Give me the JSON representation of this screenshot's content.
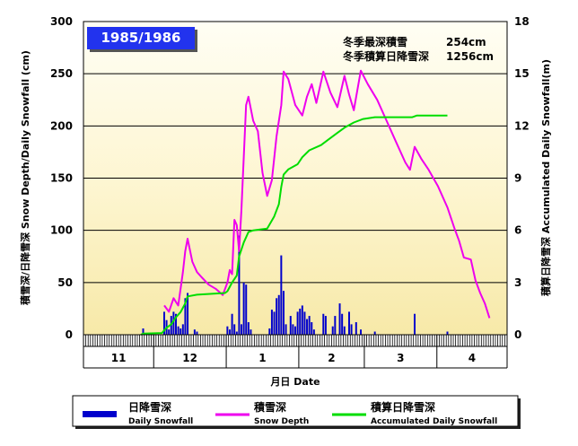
{
  "chart_data": {
    "type": "bar+line",
    "season_label": "1985/1986",
    "annotations": [
      {
        "label": "冬季最深積雪",
        "value": "254cm"
      },
      {
        "label": "冬季積算日降雪深",
        "value": "1256cm"
      }
    ],
    "y_left": {
      "label": "積雪深/日降雪深 Snow Depth/Daily Snowfall (cm)",
      "min": 0,
      "max": 300,
      "ticks": [
        0,
        50,
        100,
        150,
        200,
        250,
        300
      ]
    },
    "y_right": {
      "label": "積算日降雪深 Accumulated Daily Snowfall(m)",
      "min": 0,
      "max": 18,
      "ticks": [
        0,
        3,
        6,
        9,
        12,
        15,
        18
      ]
    },
    "x_axis": {
      "label": "月日 Date",
      "months": [
        "11",
        "12",
        "1",
        "2",
        "3",
        "4"
      ],
      "month_days": [
        30,
        31,
        31,
        28,
        31,
        30
      ],
      "start": "1985-11-01"
    },
    "grid": true,
    "legend_position": "bottom",
    "legend": [
      {
        "jp": "日降雪深",
        "en": "Daily Snowfall",
        "color": "#0000cc"
      },
      {
        "jp": "積雪深",
        "en": "Snow Depth",
        "color": "#ee00ee"
      },
      {
        "jp": "積算日降雪深",
        "en": "Accumulated Daily Snowfall",
        "color": "#00dd00"
      }
    ],
    "series": [
      {
        "name": "日降雪深 Daily Snowfall",
        "axis": "left",
        "type": "bar",
        "color": "#0000cc",
        "points": [
          [
            "1985-11-26",
            6
          ],
          [
            "1985-12-05",
            22
          ],
          [
            "1985-12-06",
            14
          ],
          [
            "1985-12-07",
            5
          ],
          [
            "1985-12-08",
            18
          ],
          [
            "1985-12-09",
            22
          ],
          [
            "1985-12-10",
            20
          ],
          [
            "1985-12-11",
            8
          ],
          [
            "1985-12-12",
            6
          ],
          [
            "1985-12-13",
            10
          ],
          [
            "1985-12-14",
            35
          ],
          [
            "1985-12-15",
            40
          ],
          [
            "1985-12-18",
            5
          ],
          [
            "1985-12-19",
            3
          ],
          [
            "1986-01-01",
            8
          ],
          [
            "1986-01-02",
            5
          ],
          [
            "1986-01-03",
            20
          ],
          [
            "1986-01-04",
            10
          ],
          [
            "1986-01-05",
            3
          ],
          [
            "1986-01-06",
            95
          ],
          [
            "1986-01-07",
            10
          ],
          [
            "1986-01-08",
            50
          ],
          [
            "1986-01-09",
            48
          ],
          [
            "1986-01-10",
            12
          ],
          [
            "1986-01-11",
            5
          ],
          [
            "1986-01-19",
            6
          ],
          [
            "1986-01-20",
            24
          ],
          [
            "1986-01-21",
            22
          ],
          [
            "1986-01-22",
            35
          ],
          [
            "1986-01-23",
            38
          ],
          [
            "1986-01-24",
            76
          ],
          [
            "1986-01-25",
            42
          ],
          [
            "1986-01-26",
            10
          ],
          [
            "1986-01-28",
            18
          ],
          [
            "1986-01-29",
            10
          ],
          [
            "1986-01-30",
            8
          ],
          [
            "1986-01-31",
            22
          ],
          [
            "1986-02-01",
            25
          ],
          [
            "1986-02-02",
            28
          ],
          [
            "1986-02-03",
            22
          ],
          [
            "1986-02-04",
            15
          ],
          [
            "1986-02-05",
            18
          ],
          [
            "1986-02-06",
            12
          ],
          [
            "1986-02-07",
            5
          ],
          [
            "1986-02-11",
            20
          ],
          [
            "1986-02-12",
            18
          ],
          [
            "1986-02-15",
            8
          ],
          [
            "1986-02-16",
            18
          ],
          [
            "1986-02-18",
            30
          ],
          [
            "1986-02-19",
            20
          ],
          [
            "1986-02-20",
            8
          ],
          [
            "1986-02-22",
            22
          ],
          [
            "1986-02-23",
            10
          ],
          [
            "1986-02-25",
            12
          ],
          [
            "1986-02-27",
            5
          ],
          [
            "1986-03-05",
            3
          ],
          [
            "1986-03-22",
            20
          ],
          [
            "1986-04-05",
            3
          ]
        ]
      },
      {
        "name": "積雪深 Snow Depth",
        "axis": "left",
        "type": "line",
        "color": "#ee00ee",
        "points": [
          [
            "1985-12-05",
            28
          ],
          [
            "1985-12-07",
            22
          ],
          [
            "1985-12-09",
            35
          ],
          [
            "1985-12-11",
            28
          ],
          [
            "1985-12-13",
            60
          ],
          [
            "1985-12-14",
            80
          ],
          [
            "1985-12-15",
            92
          ],
          [
            "1985-12-17",
            70
          ],
          [
            "1985-12-19",
            60
          ],
          [
            "1985-12-21",
            55
          ],
          [
            "1985-12-24",
            48
          ],
          [
            "1985-12-27",
            44
          ],
          [
            "1985-12-30",
            38
          ],
          [
            "1986-01-01",
            50
          ],
          [
            "1986-01-02",
            62
          ],
          [
            "1986-01-03",
            58
          ],
          [
            "1986-01-04",
            110
          ],
          [
            "1986-01-05",
            105
          ],
          [
            "1986-01-06",
            80
          ],
          [
            "1986-01-07",
            120
          ],
          [
            "1986-01-08",
            170
          ],
          [
            "1986-01-09",
            220
          ],
          [
            "1986-01-10",
            228
          ],
          [
            "1986-01-12",
            205
          ],
          [
            "1986-01-14",
            195
          ],
          [
            "1986-01-16",
            155
          ],
          [
            "1986-01-18",
            133
          ],
          [
            "1986-01-20",
            148
          ],
          [
            "1986-01-22",
            190
          ],
          [
            "1986-01-24",
            220
          ],
          [
            "1986-01-25",
            252
          ],
          [
            "1986-01-27",
            245
          ],
          [
            "1986-01-30",
            220
          ],
          [
            "1986-02-02",
            210
          ],
          [
            "1986-02-04",
            228
          ],
          [
            "1986-02-06",
            240
          ],
          [
            "1986-02-08",
            222
          ],
          [
            "1986-02-11",
            252
          ],
          [
            "1986-02-14",
            232
          ],
          [
            "1986-02-17",
            218
          ],
          [
            "1986-02-20",
            248
          ],
          [
            "1986-02-22",
            230
          ],
          [
            "1986-02-24",
            215
          ],
          [
            "1986-02-27",
            253
          ],
          [
            "1986-03-02",
            240
          ],
          [
            "1986-03-06",
            225
          ],
          [
            "1986-03-10",
            205
          ],
          [
            "1986-03-14",
            185
          ],
          [
            "1986-03-18",
            165
          ],
          [
            "1986-03-20",
            158
          ],
          [
            "1986-03-22",
            180
          ],
          [
            "1986-03-25",
            168
          ],
          [
            "1986-03-28",
            158
          ],
          [
            "1986-04-01",
            142
          ],
          [
            "1986-04-05",
            122
          ],
          [
            "1986-04-08",
            102
          ],
          [
            "1986-04-10",
            90
          ],
          [
            "1986-04-12",
            74
          ],
          [
            "1986-04-15",
            72
          ],
          [
            "1986-04-17",
            52
          ],
          [
            "1986-04-19",
            40
          ],
          [
            "1986-04-21",
            30
          ],
          [
            "1986-04-23",
            16
          ]
        ]
      },
      {
        "name": "積算日降雪深 Accumulated Daily Snowfall",
        "axis": "right",
        "type": "line",
        "color": "#00dd00",
        "points": [
          [
            "1985-11-25",
            0
          ],
          [
            "1985-11-26",
            0.06
          ],
          [
            "1985-12-04",
            0.1
          ],
          [
            "1985-12-06",
            0.4
          ],
          [
            "1985-12-08",
            0.6
          ],
          [
            "1985-12-10",
            1.0
          ],
          [
            "1985-12-12",
            1.3
          ],
          [
            "1985-12-14",
            1.8
          ],
          [
            "1985-12-15",
            2.2
          ],
          [
            "1985-12-19",
            2.3
          ],
          [
            "1985-12-31",
            2.4
          ],
          [
            "1986-01-01",
            2.5
          ],
          [
            "1986-01-03",
            3.0
          ],
          [
            "1986-01-05",
            3.4
          ],
          [
            "1986-01-06",
            4.5
          ],
          [
            "1986-01-08",
            5.3
          ],
          [
            "1986-01-10",
            5.9
          ],
          [
            "1986-01-12",
            6.0
          ],
          [
            "1986-01-18",
            6.1
          ],
          [
            "1986-01-21",
            6.8
          ],
          [
            "1986-01-23",
            7.5
          ],
          [
            "1986-01-24",
            8.5
          ],
          [
            "1986-01-25",
            9.2
          ],
          [
            "1986-01-27",
            9.5
          ],
          [
            "1986-01-31",
            9.8
          ],
          [
            "1986-02-02",
            10.2
          ],
          [
            "1986-02-05",
            10.6
          ],
          [
            "1986-02-10",
            10.9
          ],
          [
            "1986-02-13",
            11.2
          ],
          [
            "1986-02-17",
            11.6
          ],
          [
            "1986-02-20",
            11.9
          ],
          [
            "1986-02-24",
            12.2
          ],
          [
            "1986-02-28",
            12.4
          ],
          [
            "1986-03-05",
            12.5
          ],
          [
            "1986-03-21",
            12.5
          ],
          [
            "1986-03-23",
            12.6
          ],
          [
            "1986-04-05",
            12.6
          ]
        ]
      }
    ]
  }
}
